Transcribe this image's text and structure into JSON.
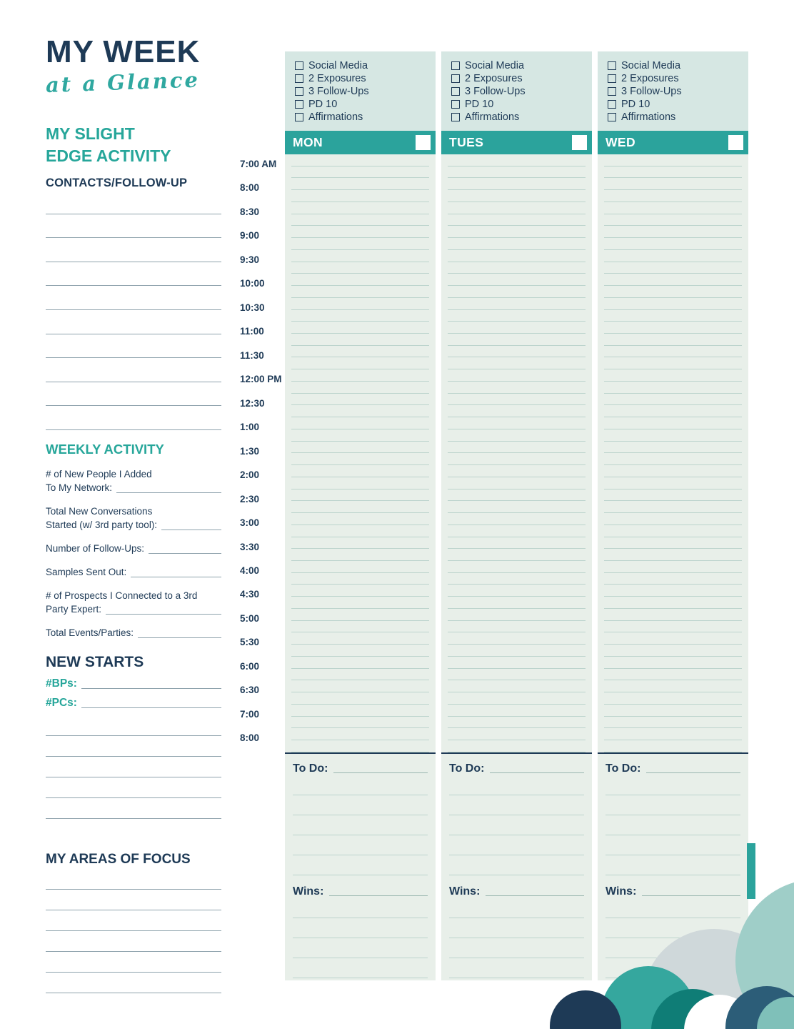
{
  "brand": {
    "title": "MY WEEK",
    "subtitle": "at a Glance"
  },
  "sidebar": {
    "slight_edge_title": "MY SLIGHT EDGE ACTIVITY",
    "contacts_title": "CONTACTS/FOLLOW-UP",
    "contact_line_count": 10,
    "weekly_title": "WEEKLY ACTIVITY",
    "weekly_fields": [
      {
        "lines": [
          "# of New People I Added",
          "To My Network:"
        ]
      },
      {
        "lines": [
          "Total New Conversations",
          "Started (w/ 3rd party tool):"
        ]
      },
      {
        "lines": [
          "Number of Follow-Ups:"
        ]
      },
      {
        "lines": [
          "Samples Sent Out:"
        ]
      },
      {
        "lines": [
          "# of Prospects I Connected to a 3rd",
          "Party Expert:"
        ]
      },
      {
        "lines": [
          "Total Events/Parties:"
        ]
      }
    ],
    "new_starts_title": "NEW STARTS",
    "bps_label": "#BPs:",
    "pcs_label": "#PCs:",
    "new_starts_line_count": 5,
    "focus_title": "MY AREAS OF FOCUS",
    "focus_line_count": 6
  },
  "schedule": {
    "times": [
      "7:00 AM",
      "8:00",
      "8:30",
      "9:00",
      "9:30",
      "10:00",
      "10:30",
      "11:00",
      "11:30",
      "12:00 PM",
      "12:30",
      "1:00",
      "1:30",
      "2:00",
      "2:30",
      "3:00",
      "3:30",
      "4:00",
      "4:30",
      "5:00",
      "5:30",
      "6:00",
      "6:30",
      "7:00",
      "8:00"
    ],
    "lines_per_day": 50
  },
  "checklist": {
    "items": [
      "Social Media",
      "2 Exposures",
      "3 Follow-Ups",
      "PD 10",
      "Affirmations"
    ]
  },
  "days": [
    {
      "name": "MON"
    },
    {
      "name": "TUES"
    },
    {
      "name": "WED"
    }
  ],
  "labels": {
    "todo": "To Do:",
    "wins": "Wins:"
  },
  "todo_line_count": 5,
  "wins_line_count": 4,
  "colors": {
    "navy": "#1e3a56",
    "teal": "#2ba39c",
    "teal_text": "#26a69a",
    "checklist_bg": "#d6e7e3",
    "column_bg": "#e8efe9",
    "rule_line": "#bcd4cd",
    "sidebar_line": "#8fa3ad"
  }
}
